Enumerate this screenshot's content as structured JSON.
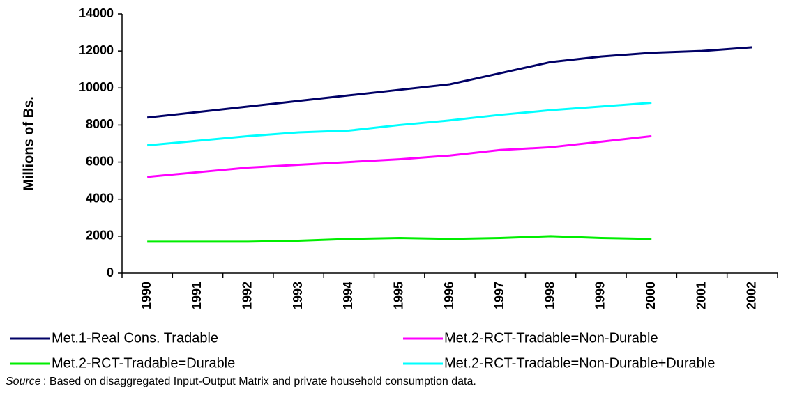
{
  "chart_data": {
    "type": "line",
    "ylabel": "Millions of Bs.",
    "categories": [
      "1990",
      "1991",
      "1992",
      "1993",
      "1994",
      "1995",
      "1996",
      "1997",
      "1998",
      "1999",
      "2000",
      "2001",
      "2002"
    ],
    "series": [
      {
        "name": "Met.1-Real Cons. Tradable",
        "color": "#000066",
        "values": [
          8400,
          8700,
          9000,
          9300,
          9600,
          9900,
          10200,
          10800,
          11400,
          11700,
          11900,
          12000,
          12200
        ]
      },
      {
        "name": "Met.2-RCT-Tradable=Non-Durable",
        "color": "#ff00ff",
        "values": [
          5200,
          5450,
          5700,
          5850,
          6000,
          6150,
          6350,
          6650,
          6800,
          7100,
          7400,
          null,
          null
        ]
      },
      {
        "name": "Met.2-RCT-Tradable=Durable",
        "color": "#00ee00",
        "values": [
          1700,
          1700,
          1700,
          1750,
          1850,
          1900,
          1850,
          1900,
          2000,
          1900,
          1850,
          null,
          null
        ]
      },
      {
        "name": "Met.2-RCT-Tradable=Non-Durable+Durable",
        "color": "#00ffff",
        "values": [
          6900,
          7150,
          7400,
          7600,
          7700,
          8000,
          8250,
          8550,
          8800,
          9000,
          9200,
          null,
          null
        ]
      }
    ],
    "ylim": [
      0,
      14000
    ],
    "yticks": [
      0,
      2000,
      4000,
      6000,
      8000,
      10000,
      12000,
      14000
    ],
    "grid": false,
    "legend": "bottom",
    "source_label": "Source",
    "source_text": ": Based on disaggregated Input-Output Matrix and private household consumption data."
  }
}
